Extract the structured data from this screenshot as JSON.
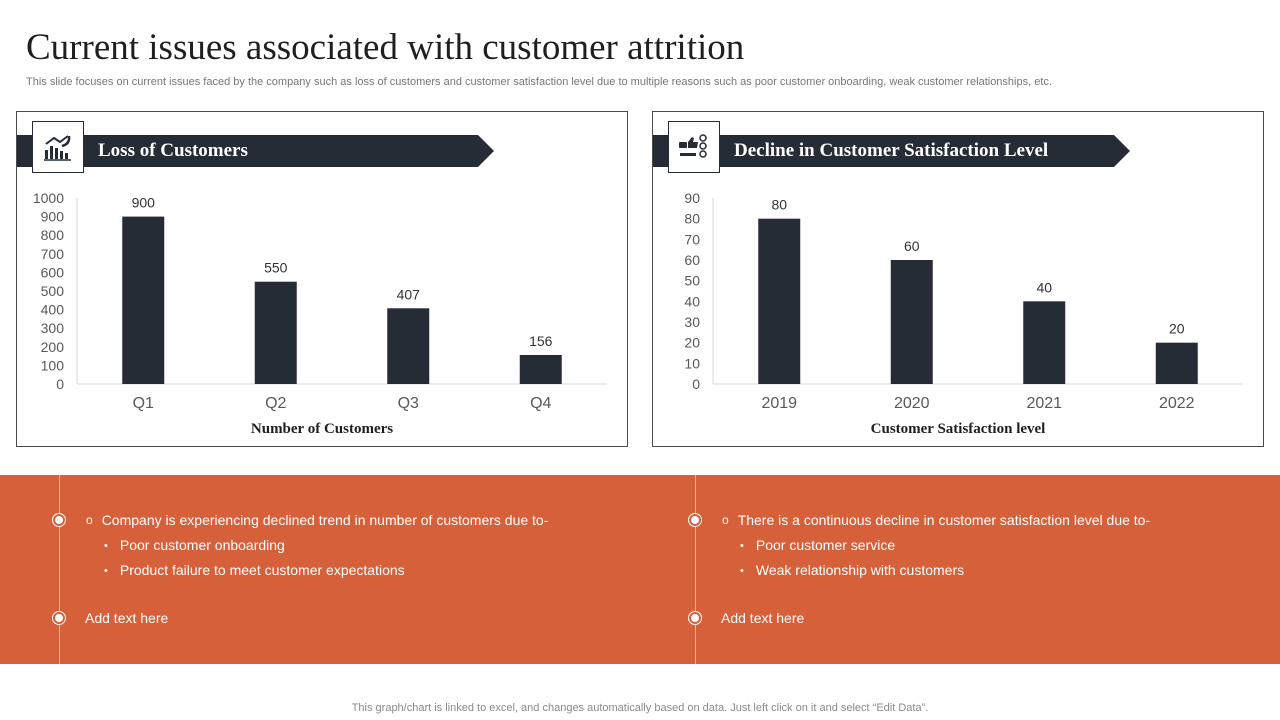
{
  "title": "Current issues associated with customer attrition",
  "subtitle": "This slide focuses on current issues faced by the company such as loss of customers and customer satisfaction level due to multiple reasons such as poor customer onboarding, weak customer relationships, etc.",
  "colors": {
    "dark": "#262c36",
    "accent": "#d6603a",
    "axis": "#595959"
  },
  "left_card": {
    "heading": "Loss of Customers",
    "icon": "declining-chart-icon"
  },
  "right_card": {
    "heading": "Decline in Customer Satisfaction Level",
    "icon": "feedback-rating-icon"
  },
  "chart_data": [
    {
      "type": "bar",
      "title": "Loss of Customers",
      "categories": [
        "Q1",
        "Q2",
        "Q3",
        "Q4"
      ],
      "values": [
        900,
        550,
        407,
        156
      ],
      "xlabel": "Number of Customers",
      "ylabel": "",
      "ylim": [
        0,
        1000
      ],
      "yticks": [
        0,
        100,
        200,
        300,
        400,
        500,
        600,
        700,
        800,
        900,
        1000
      ],
      "grid": false,
      "data_labels": true
    },
    {
      "type": "bar",
      "title": "Decline in Customer Satisfaction Level",
      "categories": [
        "2019",
        "2020",
        "2021",
        "2022"
      ],
      "values": [
        80,
        60,
        40,
        20
      ],
      "xlabel": "Customer Satisfaction level",
      "ylabel": "",
      "ylim": [
        0,
        90
      ],
      "yticks": [
        0,
        10,
        20,
        30,
        40,
        50,
        60,
        70,
        80,
        90
      ],
      "grid": false,
      "data_labels": true
    }
  ],
  "bottom": {
    "left": {
      "main": "Company is experiencing declined trend in number of customers due to-",
      "points": [
        "Poor customer onboarding",
        "Product failure to meet customer expectations"
      ],
      "add": "Add text here"
    },
    "right": {
      "main": "There is a continuous decline in customer satisfaction level due to-",
      "points": [
        "Poor customer service",
        "Weak relationship with customers"
      ],
      "add": "Add text here"
    }
  },
  "footer": "This graph/chart is linked to excel,  and changes automatically based on data. Just left click on it and select “Edit Data”."
}
